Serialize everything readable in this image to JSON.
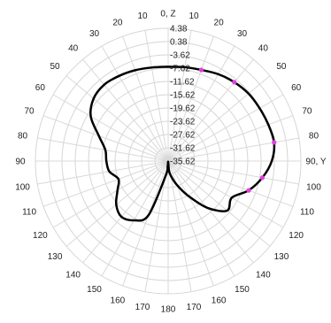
{
  "chart_data": {
    "type": "line",
    "projection": "polar",
    "theta_direction": "clockwise",
    "theta_zero": "top",
    "angle_labels": [
      "0, Z",
      "10",
      "20",
      "30",
      "40",
      "50",
      "60",
      "70",
      "80",
      "90, Y",
      "100",
      "110",
      "120",
      "130",
      "140",
      "150",
      "160",
      "170",
      "180",
      "170",
      "160",
      "150",
      "140",
      "130",
      "120",
      "110",
      "100",
      "90",
      "80",
      "70",
      "60",
      "50",
      "40",
      "30",
      "20",
      "10"
    ],
    "r_range": [
      -35.62,
      4.38
    ],
    "r_ticks": [
      4.38,
      0.38,
      -3.62,
      -7.62,
      -11.62,
      -15.62,
      -19.62,
      -23.62,
      -27.62,
      -31.62,
      -35.62
    ],
    "r_tick_labels": [
      "4.38",
      "0.38",
      "-3.62",
      "-7.62",
      "-11.62",
      "-15.62",
      "-19.62",
      "-23.62",
      "-27.62",
      "-31.62",
      "-35.62"
    ],
    "grid": true,
    "series": [
      {
        "color": "#000000",
        "theta": [
          0,
          10,
          20,
          30,
          40,
          50,
          60,
          70,
          80,
          90,
          100,
          110,
          120,
          130,
          140,
          150,
          160,
          170,
          175,
          180,
          185,
          190,
          200,
          210,
          220,
          230,
          240,
          250,
          260,
          270,
          280,
          290,
          300,
          310,
          320,
          330,
          340,
          350,
          360
        ],
        "r": [
          -7.2,
          -6.9,
          -6.4,
          -5.4,
          -4.6,
          -4.0,
          -3.8,
          -3.5,
          -3.2,
          -4.4,
          -6.8,
          -9.8,
          -13.5,
          -12.4,
          -17.2,
          -23.5,
          -28.0,
          -31.2,
          -32.8,
          -35.4,
          -34.0,
          -31.0,
          -18.2,
          -15.0,
          -13.7,
          -15.2,
          -18.0,
          -19.7,
          -17.6,
          -17.0,
          -16.4,
          -13.4,
          -8.7,
          -6.3,
          -5.6,
          -6.0,
          -6.5,
          -7.0,
          -7.2
        ]
      }
    ],
    "markers": {
      "color": "#e040e0",
      "theta": [
        20,
        40,
        80,
        100,
        110
      ]
    }
  }
}
